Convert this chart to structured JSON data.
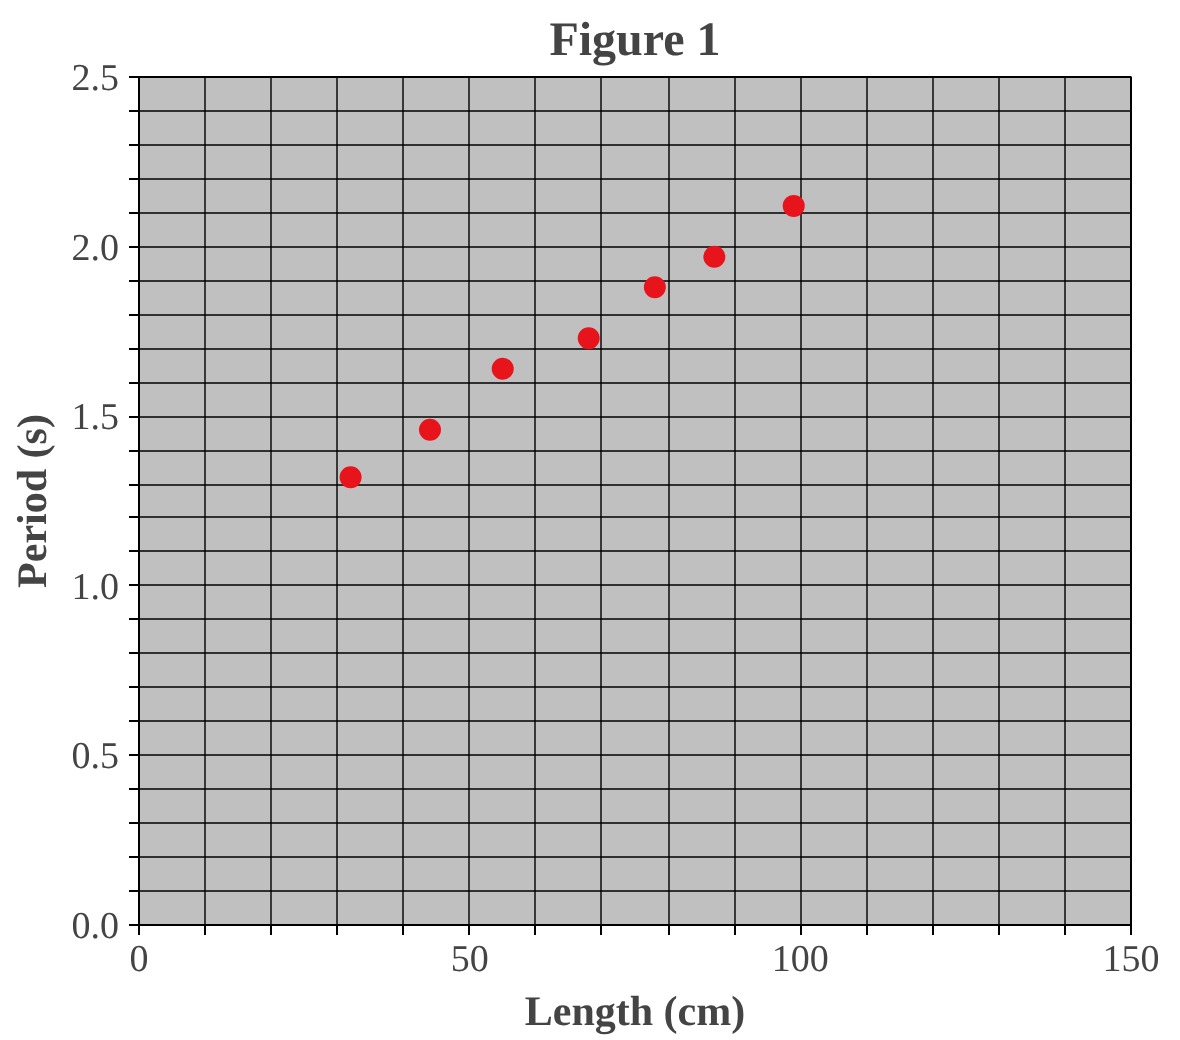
{
  "chart_data": {
    "type": "scatter",
    "title": "Figure 1",
    "xlabel": "Length (cm)",
    "ylabel": "Period (s)",
    "x": [
      32,
      44,
      55,
      68,
      78,
      87,
      99
    ],
    "series": [
      {
        "color": "#e8141c",
        "values": [
          1.32,
          1.46,
          1.64,
          1.73,
          1.88,
          1.97,
          2.12
        ]
      }
    ],
    "xlim": [
      0,
      150
    ],
    "ylim": [
      0,
      2.5
    ],
    "xticks": [
      0,
      {
        "value": 10,
        "label": null
      },
      {
        "value": 20,
        "label": null
      },
      {
        "value": 30,
        "label": null
      },
      {
        "value": 40,
        "label": null
      },
      50,
      {
        "value": 60,
        "label": null
      },
      {
        "value": 70,
        "label": null
      },
      {
        "value": 80,
        "label": null
      },
      {
        "value": 90,
        "label": null
      },
      100,
      {
        "value": 110,
        "label": null
      },
      {
        "value": 120,
        "label": null
      },
      {
        "value": 130,
        "label": null
      },
      {
        "value": 140,
        "label": null
      },
      150
    ],
    "yticks": [
      {
        "value": 0,
        "label": "0.0"
      },
      {
        "value": 0.1,
        "label": null
      },
      {
        "value": 0.2,
        "label": null
      },
      {
        "value": 0.3,
        "label": null
      },
      {
        "value": 0.4,
        "label": null
      },
      0.5,
      {
        "value": 0.6,
        "label": null
      },
      {
        "value": 0.7,
        "label": null
      },
      {
        "value": 0.8,
        "label": null
      },
      {
        "value": 0.9,
        "label": null
      },
      {
        "value": 1,
        "label": "1.0"
      },
      {
        "value": 1.1,
        "label": null
      },
      {
        "value": 1.2,
        "label": null
      },
      {
        "value": 1.3,
        "label": null
      },
      {
        "value": 1.4,
        "label": null
      },
      1.5,
      {
        "value": 1.6,
        "label": null
      },
      {
        "value": 1.7,
        "label": null
      },
      {
        "value": 1.8,
        "label": null
      },
      {
        "value": 1.9,
        "label": null
      },
      {
        "value": 2,
        "label": "2.0"
      },
      {
        "value": 2.1,
        "label": null
      },
      {
        "value": 2.2,
        "label": null
      },
      {
        "value": 2.3,
        "label": null
      },
      {
        "value": 2.4,
        "label": null
      },
      2.5
    ],
    "grid": true,
    "marker": "circle"
  }
}
